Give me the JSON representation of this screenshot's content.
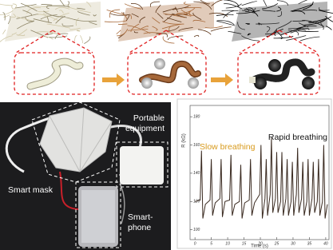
{
  "photo": {
    "labels": {
      "mask": [
        "Smart mask"
      ],
      "equipment": [
        "Portable",
        "equipment"
      ],
      "phone": [
        "Smart-",
        "phone"
      ]
    }
  },
  "chart_data": {
    "type": "line",
    "ylabel": "R (kΩ)",
    "xlabel": "Time (s)",
    "annotations": [
      {
        "text": "Slow breathing",
        "color": "#d89a1c"
      },
      {
        "text": "Rapid breathing",
        "color": "#111111"
      }
    ],
    "color": "#3a2a20",
    "x": [
      0,
      1.6,
      2,
      2.4,
      3.2,
      4.6,
      5,
      5.4,
      6.2,
      7.6,
      8,
      8.4,
      9.2,
      10.6,
      11,
      11.4,
      12.2,
      13.6,
      14,
      14.4,
      15.2,
      16.6,
      17,
      17.4,
      18.2,
      19.8,
      20.2,
      20.6,
      21.4,
      21.8,
      22.2,
      23,
      23.4,
      23.8,
      24.6,
      25,
      25.4,
      26.2,
      26.6,
      27,
      27.8,
      28.2,
      28.6,
      29.4,
      29.8,
      30.2,
      31,
      31.4,
      31.8,
      32.6,
      33,
      33.4,
      34.2,
      34.6,
      35,
      35.8,
      36.2,
      36.6,
      37.4,
      37.8,
      38.2,
      39,
      39.4,
      39.8,
      40.5
    ],
    "values": [
      120,
      121,
      156,
      108,
      118,
      121,
      150,
      110,
      119,
      122,
      150,
      109,
      120,
      121,
      153,
      110,
      118,
      120,
      146,
      108,
      119,
      121,
      150,
      110,
      119,
      125,
      160,
      108,
      122,
      150,
      110,
      125,
      165,
      112,
      122,
      155,
      112,
      120,
      155,
      110,
      122,
      150,
      110,
      120,
      148,
      110,
      125,
      158,
      112,
      122,
      148,
      110,
      120,
      150,
      110,
      122,
      148,
      112,
      120,
      150,
      110,
      120,
      160,
      108,
      118
    ],
    "xlim": [
      -1.5,
      41
    ],
    "ylim": [
      93,
      188
    ],
    "xticks": [
      0,
      5,
      10,
      15,
      20,
      25,
      30,
      35,
      40
    ],
    "yticks": [
      100,
      120,
      140,
      160,
      180
    ]
  }
}
